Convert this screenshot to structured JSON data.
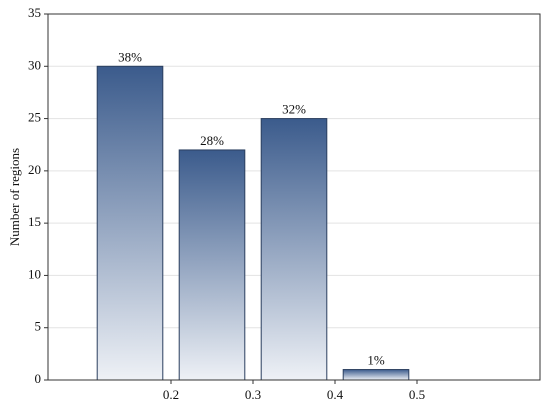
{
  "chart_data": {
    "type": "histogram",
    "y_label": "Number of regions",
    "bins": [
      0.1,
      0.2,
      0.3,
      0.4,
      0.5
    ],
    "values": [
      30,
      22,
      25,
      1
    ],
    "percent_labels": [
      "38%",
      "28%",
      "32%",
      "1%"
    ],
    "color": "#3b5b8c",
    "xlim": [
      0.05,
      0.65
    ],
    "xticks": [
      0.2,
      0.3,
      0.4,
      0.5
    ],
    "ylim": [
      0,
      35
    ],
    "yticks": [
      0,
      5,
      10,
      15,
      20,
      25,
      30,
      35
    ],
    "grid": true
  }
}
